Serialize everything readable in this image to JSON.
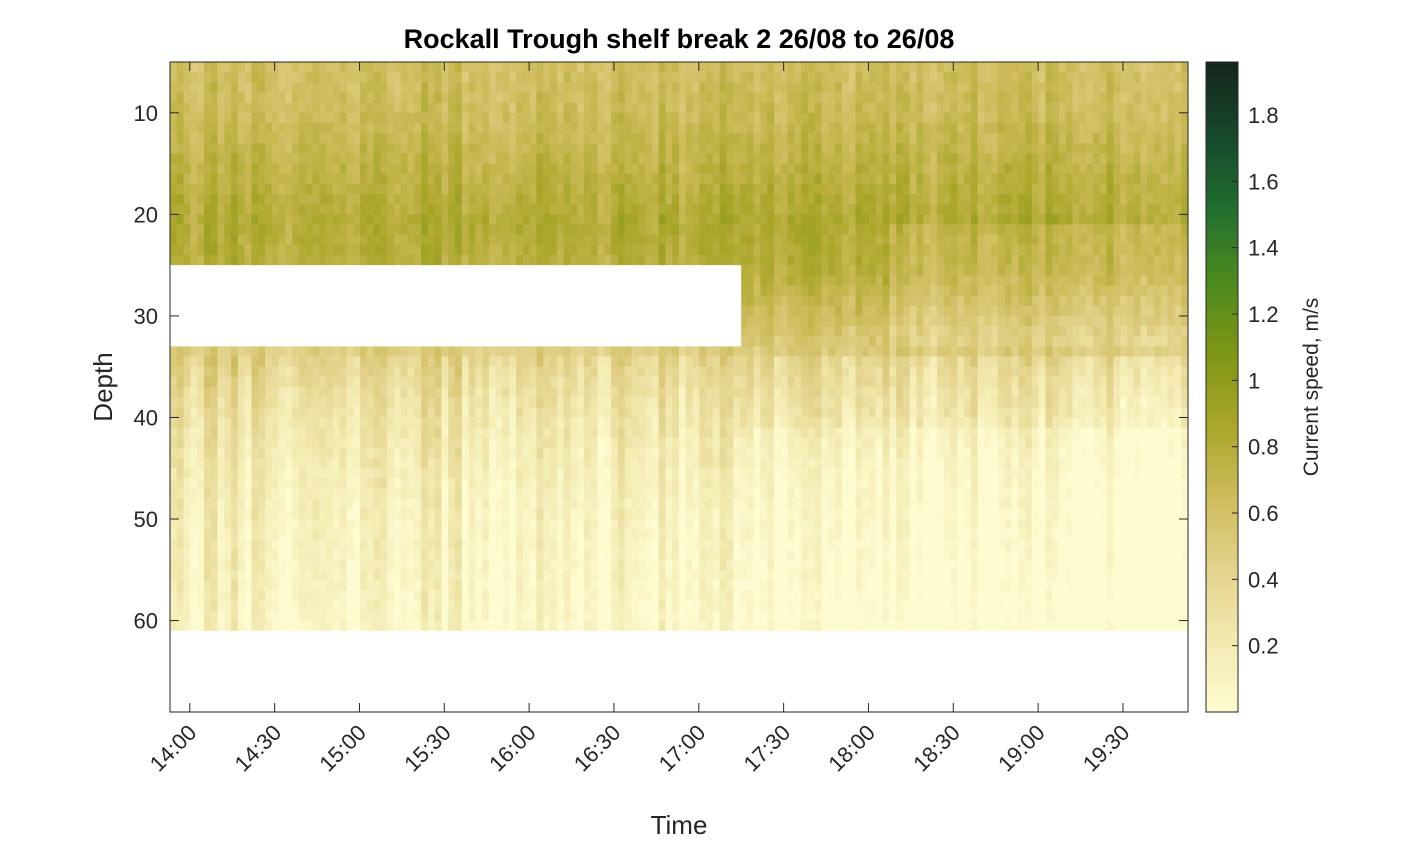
{
  "chart_data": {
    "type": "heatmap",
    "title": "Rockall Trough shelf break 2 26/08 to 26/08",
    "xlabel": "Time",
    "ylabel": "Depth",
    "x_ticks": [
      "14:00",
      "14:30",
      "15:00",
      "15:30",
      "16:00",
      "16:30",
      "17:00",
      "17:30",
      "18:00",
      "18:30",
      "19:00",
      "19:30"
    ],
    "x_range": [
      "13:53",
      "19:53"
    ],
    "y_ticks": [
      10,
      20,
      30,
      40,
      50,
      60
    ],
    "y_range": [
      5,
      69
    ],
    "y_reversed": true,
    "colorbar": {
      "label": "Current speed, m/s",
      "ticks": [
        0.2,
        0.4,
        0.6,
        0.8,
        1,
        1.2,
        1.4,
        1.6,
        1.8
      ],
      "range": [
        0,
        1.96
      ],
      "colormap": [
        "#fdfbd0",
        "#f2eab0",
        "#e3d28b",
        "#cdbb5a",
        "#a9a629",
        "#7d9616",
        "#4a8a1e",
        "#1f6e2f",
        "#17482b",
        "#14261c"
      ]
    },
    "depth_bins": [
      5,
      10,
      15,
      20,
      25,
      30,
      35,
      40,
      45,
      50,
      55,
      60
    ],
    "mean_speed_profile": [
      0.62,
      0.66,
      0.74,
      0.82,
      0.78,
      0.6,
      0.42,
      0.3,
      0.22,
      0.18,
      0.15,
      0.12
    ],
    "no_data_regions": [
      {
        "depth": [
          25,
          33
        ],
        "time": [
          "13:53",
          "17:15"
        ]
      },
      {
        "depth": [
          61,
          69
        ],
        "time": [
          "13:53",
          "19:53"
        ]
      }
    ],
    "grid": false
  }
}
